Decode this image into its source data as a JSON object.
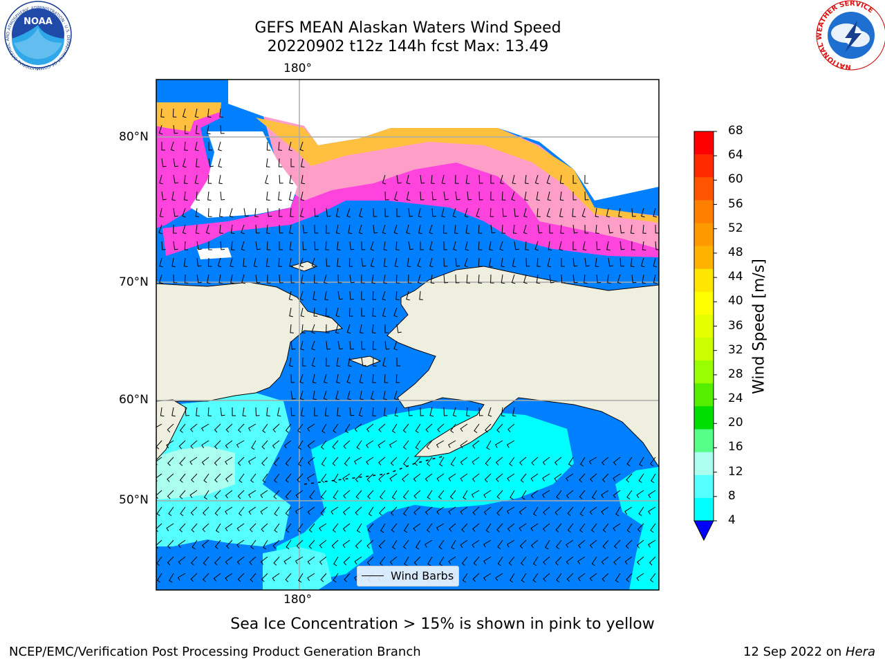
{
  "header": {
    "title_line1": "GEFS MEAN Alaskan Waters Wind Speed",
    "title_line2": "20220902 t12z 144h fcst   Max: 13.49"
  },
  "map": {
    "lon_label": "180°",
    "lat_labels": [
      "80°N",
      "70°N",
      "60°N",
      "50°N"
    ],
    "legend_label": "Wind Barbs"
  },
  "colorbar": {
    "label": "Wind Speed [m/s]",
    "ticks": [
      "68",
      "64",
      "60",
      "56",
      "52",
      "48",
      "44",
      "40",
      "36",
      "32",
      "28",
      "24",
      "20",
      "16",
      "12",
      "8",
      "4"
    ],
    "colors": [
      "#ff0000",
      "#ff2a00",
      "#ff5500",
      "#ff7f00",
      "#ff9900",
      "#ffb300",
      "#ffe600",
      "#ffff00",
      "#e6ff00",
      "#ccff00",
      "#99ff00",
      "#55ee00",
      "#00dd00",
      "#55ff88",
      "#aaffee",
      "#55ffff",
      "#00ffff",
      "#0080ff"
    ],
    "extend_color": "#0000ff"
  },
  "footer": {
    "note": "Sea Ice Concentration > 15% is shown in pink to yellow",
    "org": "NCEP/EMC/Verification Post Processing Product Generation Branch",
    "date": "12 Sep 2022 on ",
    "host": "Hera"
  },
  "logos": {
    "noaa_text": "NOAA",
    "noaa_ring": "NATIONAL OCEANIC AND ATMOSPHERIC ADMINISTRATION · U.S. DEPARTMENT OF COMMERCE ·",
    "nws_ring": "NATIONAL WEATHER SERVICE"
  },
  "colors": {
    "ocean": "#0080ff",
    "calm_high": "#00ffff",
    "mid": "#55ffff",
    "land": "#efefdf",
    "ice_pink": "#ff44dd",
    "ice_mid": "#ff9fc8",
    "ice_yellow": "#ffc040"
  }
}
